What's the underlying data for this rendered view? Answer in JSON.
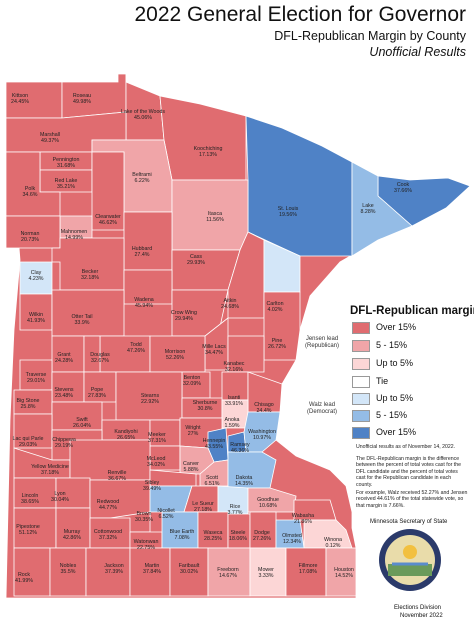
{
  "header": {
    "title": "2022 General Election for Governor",
    "subtitle": "DFL-Republican Margin by County",
    "subtitle2": "Unofficial Results"
  },
  "colors": {
    "rep_over15": "#e06c70",
    "rep_5_15": "#f0a5a8",
    "rep_upto5": "#fcd6d6",
    "tie": "#ffffff",
    "dem_upto5": "#d3e6f8",
    "dem_5_15": "#94bce6",
    "dem_over15": "#4f82c6",
    "border": "#ffffff"
  },
  "legend": {
    "title": "DFL-Republican margin",
    "rep_group": "Jensen lead (Republican)",
    "dem_group": "Walz lead (Democrat)",
    "items": [
      {
        "label": "Over 15%",
        "color": "#e06c70"
      },
      {
        "label": "5 - 15%",
        "color": "#f0a5a8"
      },
      {
        "label": "Up to 5%",
        "color": "#fcd6d6"
      },
      {
        "label": "Tie",
        "color": "#ffffff"
      },
      {
        "label": "Up to 5%",
        "color": "#d3e6f8"
      },
      {
        "label": "5 - 15%",
        "color": "#94bce6"
      },
      {
        "label": "Over 15%",
        "color": "#4f82c6"
      }
    ]
  },
  "notes": {
    "unofficial": "Unofficial results as of November 14, 2022.",
    "explain": "The DFL-Republican margin is the difference between the percent of total votes cast for the DFL candidate and the percent of total votes cast for the Republican candidate in each county.",
    "example": "For example, Walz received 52.27% and Jensen received 44.61% of the total statewide vote, so that margin is 7.66%."
  },
  "org": {
    "name": "Minnesota Secretary of State",
    "division": "Elections Division",
    "date": "November 2022"
  },
  "counties": [
    {
      "name": "Kittson",
      "margin": "24.45%",
      "party": "R",
      "band": "over15"
    },
    {
      "name": "Roseau",
      "margin": "49.98%",
      "party": "R",
      "band": "over15"
    },
    {
      "name": "Lake of the Woods",
      "margin": "45.06%",
      "party": "R",
      "band": "over15"
    },
    {
      "name": "Marshall",
      "margin": "49.37%",
      "party": "R",
      "band": "over15"
    },
    {
      "name": "Koochiching",
      "margin": "17.13%",
      "party": "R",
      "band": "over15"
    },
    {
      "name": "Pennington",
      "margin": "31.68%",
      "party": "R",
      "band": "over15"
    },
    {
      "name": "Red Lake",
      "margin": "35.21%",
      "party": "R",
      "band": "over15"
    },
    {
      "name": "Polk",
      "margin": "34.6%",
      "party": "R",
      "band": "over15"
    },
    {
      "name": "Beltrami",
      "margin": "6.22%",
      "party": "R",
      "band": "5_15"
    },
    {
      "name": "Cook",
      "margin": "37.66%",
      "party": "D",
      "band": "over15"
    },
    {
      "name": "St. Louis",
      "margin": "19.56%",
      "party": "D",
      "band": "over15"
    },
    {
      "name": "Lake",
      "margin": "8.28%",
      "party": "D",
      "band": "5_15"
    },
    {
      "name": "Clearwater",
      "margin": "46.62%",
      "party": "R",
      "band": "over15"
    },
    {
      "name": "Itasca",
      "margin": "11.56%",
      "party": "R",
      "band": "5_15"
    },
    {
      "name": "Mahnomen",
      "margin": "14.99%",
      "party": "R",
      "band": "5_15"
    },
    {
      "name": "Norman",
      "margin": "20.73%",
      "party": "R",
      "band": "over15"
    },
    {
      "name": "Hubbard",
      "margin": "27.4%",
      "party": "R",
      "band": "over15"
    },
    {
      "name": "Cass",
      "margin": "29.93%",
      "party": "R",
      "band": "over15"
    },
    {
      "name": "Clay",
      "margin": "4.23%",
      "party": "D",
      "band": "upto5"
    },
    {
      "name": "Becker",
      "margin": "32.18%",
      "party": "R",
      "band": "over15"
    },
    {
      "name": "Wadena",
      "margin": "45.94%",
      "party": "R",
      "band": "over15"
    },
    {
      "name": "Crow Wing",
      "margin": "29.94%",
      "party": "R",
      "band": "over15"
    },
    {
      "name": "Aitkin",
      "margin": "24.68%",
      "party": "R",
      "band": "over15"
    },
    {
      "name": "Carlton",
      "margin": "4.02%",
      "party": "D",
      "band": "upto5"
    },
    {
      "name": "Wilkin",
      "margin": "41.93%",
      "party": "R",
      "band": "over15"
    },
    {
      "name": "Otter Tail",
      "margin": "33.9%",
      "party": "R",
      "band": "over15"
    },
    {
      "name": "Todd",
      "margin": "47.26%",
      "party": "R",
      "band": "over15"
    },
    {
      "name": "Mille Lacs",
      "margin": "34.47%",
      "party": "R",
      "band": "over15"
    },
    {
      "name": "Pine",
      "margin": "26.72%",
      "party": "R",
      "band": "over15"
    },
    {
      "name": "Grant",
      "margin": "24.28%",
      "party": "R",
      "band": "over15"
    },
    {
      "name": "Douglas",
      "margin": "32.67%",
      "party": "R",
      "band": "over15"
    },
    {
      "name": "Morrison",
      "margin": "52.26%",
      "party": "R",
      "band": "over15"
    },
    {
      "name": "Kanabec",
      "margin": "32.16%",
      "party": "R",
      "band": "over15"
    },
    {
      "name": "Traverse",
      "margin": "29.01%",
      "party": "R",
      "band": "over15"
    },
    {
      "name": "Stevens",
      "margin": "23.48%",
      "party": "R",
      "band": "over15"
    },
    {
      "name": "Pope",
      "margin": "27.83%",
      "party": "R",
      "band": "over15"
    },
    {
      "name": "Benton",
      "margin": "32.09%",
      "party": "R",
      "band": "over15"
    },
    {
      "name": "Isanti",
      "margin": "33.91%",
      "party": "R",
      "band": "over15"
    },
    {
      "name": "Chisago",
      "margin": "24.4%",
      "party": "R",
      "band": "over15"
    },
    {
      "name": "Big Stone",
      "margin": "25.8%",
      "party": "R",
      "band": "over15"
    },
    {
      "name": "Stearns",
      "margin": "22.92%",
      "party": "R",
      "band": "over15"
    },
    {
      "name": "Sherburne",
      "margin": "30.8%",
      "party": "R",
      "band": "over15"
    },
    {
      "name": "Anoka",
      "margin": "1.59%",
      "party": "R",
      "band": "upto5"
    },
    {
      "name": "Swift",
      "margin": "26.04%",
      "party": "R",
      "band": "over15"
    },
    {
      "name": "Kandiyohi",
      "margin": "26.65%",
      "party": "R",
      "band": "over15"
    },
    {
      "name": "Meeker",
      "margin": "37.31%",
      "party": "R",
      "band": "over15"
    },
    {
      "name": "Wright",
      "margin": "27%",
      "party": "R",
      "band": "over15"
    },
    {
      "name": "Hennepin",
      "margin": "43.55%",
      "party": "D",
      "band": "over15"
    },
    {
      "name": "Ramsey",
      "margin": "46.36%",
      "party": "D",
      "band": "over15"
    },
    {
      "name": "Washington",
      "margin": "10.97%",
      "party": "D",
      "band": "5_15"
    },
    {
      "name": "Lac qui Parle",
      "margin": "29.03%",
      "party": "R",
      "band": "over15"
    },
    {
      "name": "Chippewa",
      "margin": "29.19%",
      "party": "R",
      "band": "over15"
    },
    {
      "name": "McLeod",
      "margin": "34.02%",
      "party": "R",
      "band": "over15"
    },
    {
      "name": "Carver",
      "margin": "5.88%",
      "party": "R",
      "band": "5_15"
    },
    {
      "name": "Yellow Medicine",
      "margin": "37.18%",
      "party": "R",
      "band": "over15"
    },
    {
      "name": "Renville",
      "margin": "36.67%",
      "party": "R",
      "band": "over15"
    },
    {
      "name": "Sibley",
      "margin": "39.49%",
      "party": "R",
      "band": "over15"
    },
    {
      "name": "Scott",
      "margin": "6.51%",
      "party": "R",
      "band": "5_15"
    },
    {
      "name": "Dakota",
      "margin": "14.35%",
      "party": "D",
      "band": "5_15"
    },
    {
      "name": "Lincoln",
      "margin": "38.65%",
      "party": "R",
      "band": "over15"
    },
    {
      "name": "Lyon",
      "margin": "30.04%",
      "party": "R",
      "band": "over15"
    },
    {
      "name": "Redwood",
      "margin": "44.77%",
      "party": "R",
      "band": "over15"
    },
    {
      "name": "Nicollet",
      "margin": "6.52%",
      "party": "D",
      "band": "5_15"
    },
    {
      "name": "Le Sueur",
      "margin": "27.18%",
      "party": "R",
      "band": "over15"
    },
    {
      "name": "Rice",
      "margin": "3.77%",
      "party": "D",
      "band": "upto5"
    },
    {
      "name": "Goodhue",
      "margin": "10.68%",
      "party": "R",
      "band": "5_15"
    },
    {
      "name": "Wabasha",
      "margin": "21.86%",
      "party": "R",
      "band": "over15"
    },
    {
      "name": "Brown",
      "margin": "30.35%",
      "party": "R",
      "band": "over15"
    },
    {
      "name": "Pipestone",
      "margin": "51.12%",
      "party": "R",
      "band": "over15"
    },
    {
      "name": "Murray",
      "margin": "42.86%",
      "party": "R",
      "band": "over15"
    },
    {
      "name": "Cottonwood",
      "margin": "37.32%",
      "party": "R",
      "band": "over15"
    },
    {
      "name": "Watonwan",
      "margin": "22.75%",
      "party": "R",
      "band": "over15"
    },
    {
      "name": "Blue Earth",
      "margin": "7.08%",
      "party": "D",
      "band": "5_15"
    },
    {
      "name": "Waseca",
      "margin": "28.25%",
      "party": "R",
      "band": "over15"
    },
    {
      "name": "Steele",
      "margin": "18.06%",
      "party": "R",
      "band": "over15"
    },
    {
      "name": "Dodge",
      "margin": "27.26%",
      "party": "R",
      "band": "over15"
    },
    {
      "name": "Olmsted",
      "margin": "12.34%",
      "party": "D",
      "band": "5_15"
    },
    {
      "name": "Winona",
      "margin": "0.12%",
      "party": "R",
      "band": "upto5"
    },
    {
      "name": "Rock",
      "margin": "41.99%",
      "party": "R",
      "band": "over15"
    },
    {
      "name": "Nobles",
      "margin": "35.5%",
      "party": "R",
      "band": "over15"
    },
    {
      "name": "Jackson",
      "margin": "37.39%",
      "party": "R",
      "band": "over15"
    },
    {
      "name": "Martin",
      "margin": "37.84%",
      "party": "R",
      "band": "over15"
    },
    {
      "name": "Faribault",
      "margin": "30.02%",
      "party": "R",
      "band": "over15"
    },
    {
      "name": "Freeborn",
      "margin": "14.67%",
      "party": "R",
      "band": "5_15"
    },
    {
      "name": "Mower",
      "margin": "3.33%",
      "party": "R",
      "band": "upto5"
    },
    {
      "name": "Fillmore",
      "margin": "17.08%",
      "party": "R",
      "band": "over15"
    },
    {
      "name": "Houston",
      "margin": "14.52%",
      "party": "R",
      "band": "5_15"
    }
  ]
}
